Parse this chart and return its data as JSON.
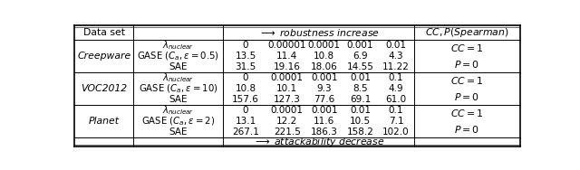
{
  "robustness_vals_creep": [
    "0",
    "0.00001",
    "0.0001",
    "0.001",
    "0.01"
  ],
  "robustness_vals_voc": [
    "0",
    "0.0001",
    "0.001",
    "0.01",
    "0.1"
  ],
  "robustness_vals_planet": [
    "0",
    "0.0001",
    "0.001",
    "0.01",
    "0.1"
  ],
  "creepware_gase": [
    "13.5",
    "11.4",
    "10.8",
    "6.9",
    "4.3"
  ],
  "creepware_sae": [
    "31.5",
    "19.16",
    "18.06",
    "14.55",
    "11.22"
  ],
  "voc_gase": [
    "10.8",
    "10.1",
    "9.3",
    "8.5",
    "4.9"
  ],
  "voc_sae": [
    "157.6",
    "127.3",
    "77.6",
    "69.1",
    "61.0"
  ],
  "planet_gase": [
    "13.1",
    "12.2",
    "11.6",
    "10.5",
    "7.1"
  ],
  "planet_sae": [
    "267.1",
    "221.5",
    "186.3",
    "158.2",
    "102.0"
  ],
  "bg_color": "#ffffff",
  "fontsize": 7.8
}
